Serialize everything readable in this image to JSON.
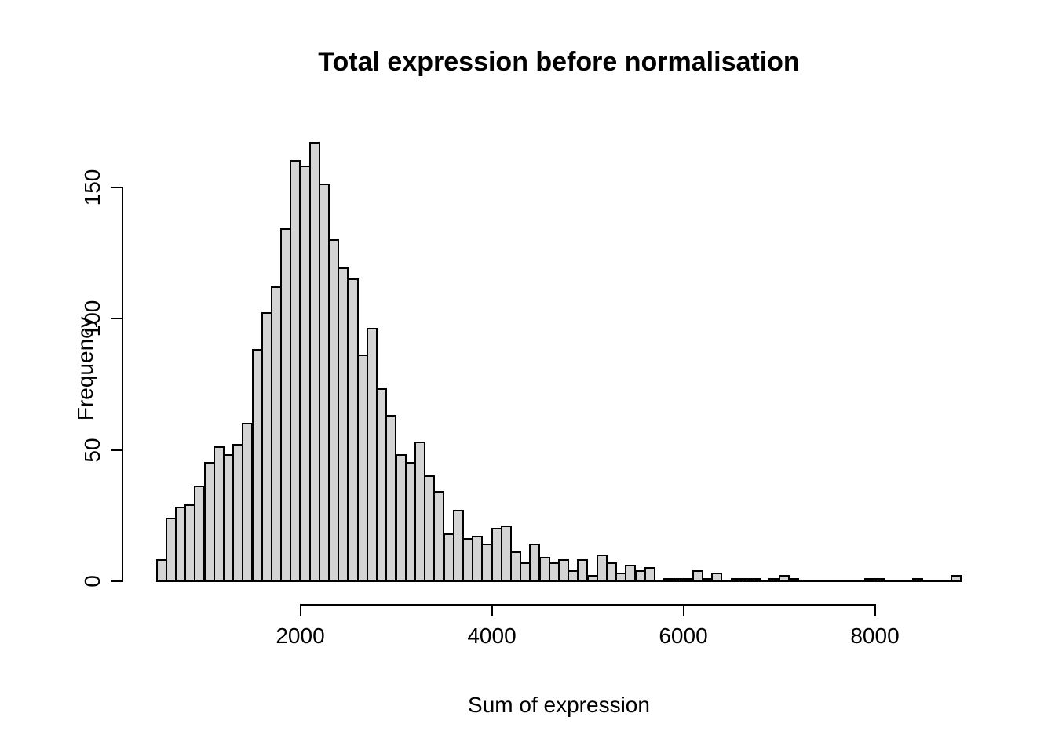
{
  "figure": {
    "title": "Total expression before normalisation",
    "xlabel": "Sum of expression",
    "ylabel": "Frequency"
  },
  "chart_data": {
    "type": "bar",
    "subtype": "histogram",
    "title": "Total expression before normalisation",
    "xlabel": "Sum of expression",
    "ylabel": "Frequency",
    "bin_start": 500,
    "bin_width": 100,
    "counts": [
      8,
      24,
      28,
      29,
      36,
      45,
      51,
      48,
      52,
      60,
      88,
      102,
      112,
      134,
      160,
      158,
      167,
      151,
      130,
      119,
      115,
      86,
      96,
      73,
      63,
      48,
      45,
      53,
      40,
      34,
      18,
      27,
      16,
      17,
      14,
      20,
      21,
      11,
      7,
      14,
      9,
      7,
      8,
      4,
      8,
      2,
      10,
      7,
      3,
      6,
      4,
      5,
      0,
      1,
      1,
      1,
      4,
      1,
      3,
      0,
      1,
      1,
      1,
      0,
      1,
      2,
      1,
      0,
      0,
      0,
      0,
      0,
      0,
      0,
      1,
      1,
      0,
      0,
      0,
      1,
      0,
      0,
      0,
      2
    ],
    "x_ticks": [
      2000,
      4000,
      6000,
      8000
    ],
    "y_ticks": [
      0,
      50,
      100,
      150
    ],
    "xlim": [
      500,
      8900
    ],
    "ylim": [
      0,
      168
    ],
    "grid": false,
    "legend": null,
    "colors": {
      "bar_fill": "#d4d4d4",
      "bar_stroke": "#000000",
      "axis": "#000000",
      "text": "#000000",
      "background": "#ffffff"
    }
  }
}
